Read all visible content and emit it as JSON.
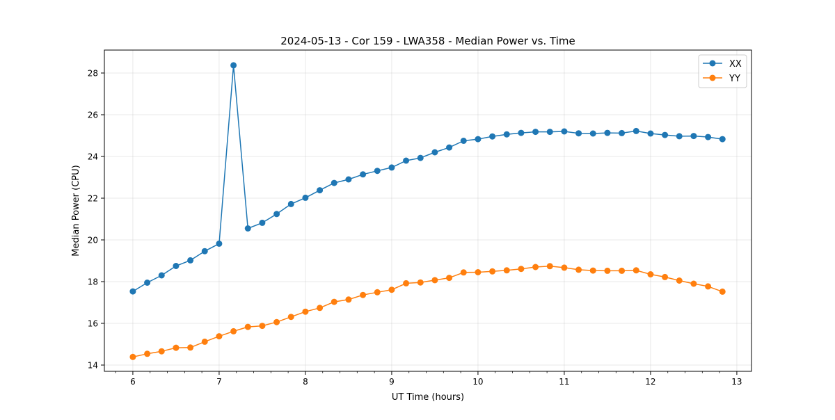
{
  "chart_data": {
    "type": "line",
    "title": "2024-05-13 - Cor 159 - LWA358 - Median Power vs. Time",
    "xlabel": "UT Time (hours)",
    "ylabel": "Median Power (CPU)",
    "xlim": [
      5.67,
      13.17
    ],
    "ylim": [
      13.7,
      29.1
    ],
    "x_ticks": [
      6,
      7,
      8,
      9,
      10,
      11,
      12,
      13
    ],
    "y_ticks": [
      14,
      16,
      18,
      20,
      22,
      24,
      26,
      28
    ],
    "grid": true,
    "legend_position": "top-right",
    "x": [
      6.0,
      6.1667,
      6.3333,
      6.5,
      6.6667,
      6.8333,
      7.0,
      7.1667,
      7.3333,
      7.5,
      7.6667,
      7.8333,
      8.0,
      8.1667,
      8.3333,
      8.5,
      8.6667,
      8.8333,
      9.0,
      9.1667,
      9.3333,
      9.5,
      9.6667,
      9.8333,
      10.0,
      10.1667,
      10.3333,
      10.5,
      10.6667,
      10.8333,
      11.0,
      11.1667,
      11.3333,
      11.5,
      11.6667,
      11.8333,
      12.0,
      12.1667,
      12.3333,
      12.5,
      12.6667,
      12.8333
    ],
    "series": [
      {
        "name": "XX",
        "color": "#1f77b4",
        "values": [
          17.53,
          17.95,
          18.3,
          18.75,
          19.02,
          19.46,
          19.82,
          28.37,
          20.55,
          20.82,
          21.24,
          21.72,
          22.02,
          22.38,
          22.73,
          22.9,
          23.14,
          23.31,
          23.47,
          23.8,
          23.93,
          24.2,
          24.43,
          24.75,
          24.83,
          24.96,
          25.06,
          25.13,
          25.18,
          25.18,
          25.2,
          25.11,
          25.1,
          25.13,
          25.12,
          25.22,
          25.1,
          25.03,
          24.97,
          24.98,
          24.93,
          24.83
        ]
      },
      {
        "name": "YY",
        "color": "#ff7f0e",
        "values": [
          14.39,
          14.54,
          14.66,
          14.83,
          14.84,
          15.12,
          15.38,
          15.62,
          15.83,
          15.88,
          16.06,
          16.31,
          16.56,
          16.74,
          17.03,
          17.14,
          17.36,
          17.49,
          17.61,
          17.92,
          17.96,
          18.07,
          18.18,
          18.44,
          18.45,
          18.49,
          18.54,
          18.61,
          18.7,
          18.74,
          18.67,
          18.57,
          18.53,
          18.52,
          18.52,
          18.54,
          18.35,
          18.22,
          18.05,
          17.9,
          17.77,
          17.52
        ]
      }
    ]
  }
}
